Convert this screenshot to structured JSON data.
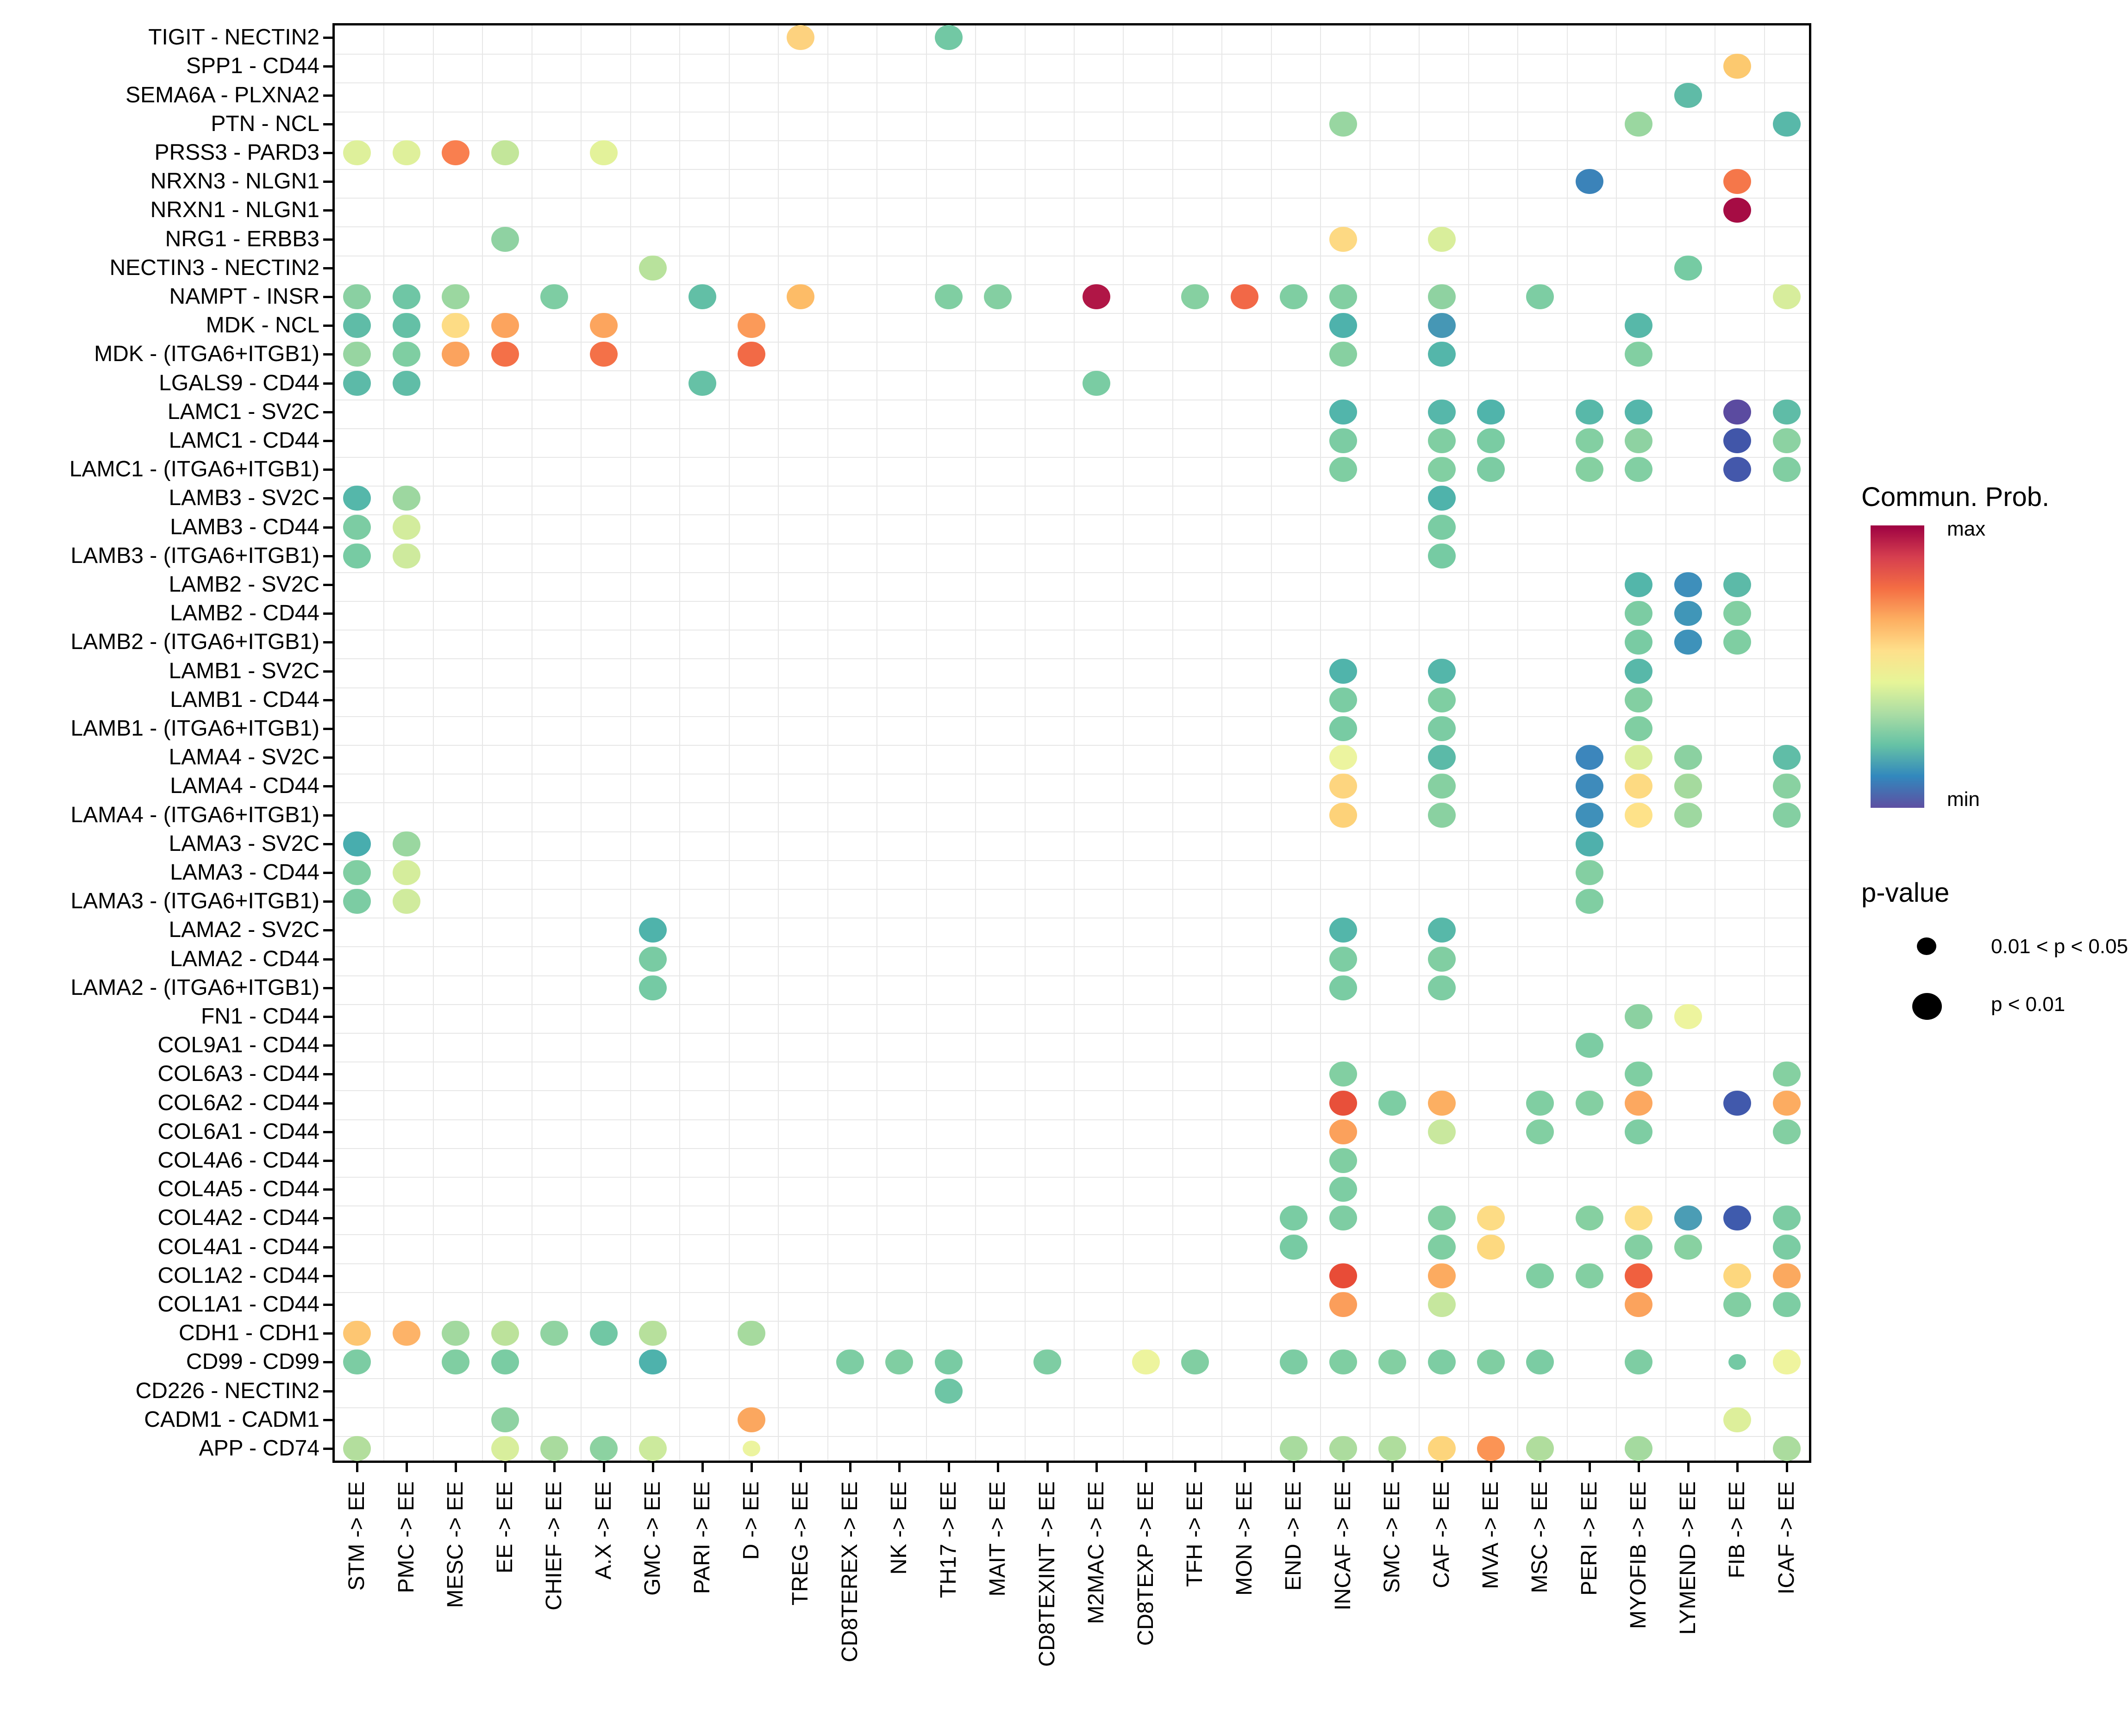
{
  "chart_data": {
    "type": "scatter",
    "subtype": "bubble-dotplot",
    "x_categories": [
      "STM -> EE",
      "PMC -> EE",
      "MESC -> EE",
      "EE -> EE",
      "CHIEF -> EE",
      "A.X -> EE",
      "GMC -> EE",
      "PARI -> EE",
      "D -> EE",
      "TREG -> EE",
      "CD8TEREX -> EE",
      "NK -> EE",
      "TH17 -> EE",
      "MAIT -> EE",
      "CD8TEXINT -> EE",
      "M2MAC -> EE",
      "CD8TEXP -> EE",
      "TFH -> EE",
      "MON -> EE",
      "END -> EE",
      "INCAF -> EE",
      "SMC -> EE",
      "CAF -> EE",
      "MVA -> EE",
      "MSC -> EE",
      "PERI -> EE",
      "MYOFIB -> EE",
      "LYMEND -> EE",
      "FIB -> EE",
      "ICAF -> EE"
    ],
    "y_categories": [
      "TIGIT - NECTIN2",
      "SPP1 - CD44",
      "SEMA6A - PLXNA2",
      "PTN - NCL",
      "PRSS3 - PARD3",
      "NRXN3 - NLGN1",
      "NRXN1 - NLGN1",
      "NRG1 - ERBB3",
      "NECTIN3 - NECTIN2",
      "NAMPT - INSR",
      "MDK - NCL",
      "MDK - (ITGA6+ITGB1)",
      "LGALS9 - CD44",
      "LAMC1 - SV2C",
      "LAMC1 - CD44",
      "LAMC1 - (ITGA6+ITGB1)",
      "LAMB3 - SV2C",
      "LAMB3 - CD44",
      "LAMB3 - (ITGA6+ITGB1)",
      "LAMB2 - SV2C",
      "LAMB2 - CD44",
      "LAMB2 - (ITGA6+ITGB1)",
      "LAMB1 - SV2C",
      "LAMB1 - CD44",
      "LAMB1 - (ITGA6+ITGB1)",
      "LAMA4 - SV2C",
      "LAMA4 - CD44",
      "LAMA4 - (ITGA6+ITGB1)",
      "LAMA3 - SV2C",
      "LAMA3 - CD44",
      "LAMA3 - (ITGA6+ITGB1)",
      "LAMA2 - SV2C",
      "LAMA2 - CD44",
      "LAMA2 - (ITGA6+ITGB1)",
      "FN1 - CD44",
      "COL9A1 - CD44",
      "COL6A3 - CD44",
      "COL6A2 - CD44",
      "COL6A1 - CD44",
      "COL4A6 - CD44",
      "COL4A5 - CD44",
      "COL4A2 - CD44",
      "COL4A1 - CD44",
      "COL1A2 - CD44",
      "COL1A1 - CD44",
      "CDH1 - CDH1",
      "CD99 - CD99",
      "CD226 - NECTIN2",
      "CADM1 - CADM1",
      "APP - CD74"
    ],
    "point_format": [
      "row_index",
      "col_index",
      "color",
      "size (lg = p<0.01, sm = 0.01<p<0.05)"
    ],
    "points": [
      [
        0,
        9,
        "#FDD27F",
        "lg"
      ],
      [
        0,
        12,
        "#72C8A4",
        "lg"
      ],
      [
        1,
        28,
        "#FCC96F",
        "lg"
      ],
      [
        2,
        27,
        "#5FBBA7",
        "lg"
      ],
      [
        3,
        20,
        "#98D6A1",
        "lg"
      ],
      [
        3,
        26,
        "#9AD7A0",
        "lg"
      ],
      [
        3,
        29,
        "#58B8A9",
        "lg"
      ],
      [
        4,
        0,
        "#DEF09B",
        "lg"
      ],
      [
        4,
        1,
        "#DFF09B",
        "lg"
      ],
      [
        4,
        2,
        "#F97F4F",
        "lg"
      ],
      [
        4,
        3,
        "#C3E69A",
        "lg"
      ],
      [
        4,
        5,
        "#E3F29A",
        "lg"
      ],
      [
        5,
        25,
        "#3B83B9",
        "lg"
      ],
      [
        5,
        28,
        "#F5774A",
        "lg"
      ],
      [
        6,
        28,
        "#A60C44",
        "lg"
      ],
      [
        7,
        3,
        "#8FD2A2",
        "lg"
      ],
      [
        7,
        20,
        "#FDD983",
        "lg"
      ],
      [
        7,
        22,
        "#D9EE9B",
        "lg"
      ],
      [
        8,
        6,
        "#B8E29C",
        "lg"
      ],
      [
        8,
        27,
        "#76CBA3",
        "lg"
      ],
      [
        9,
        0,
        "#8AD0A2",
        "lg"
      ],
      [
        9,
        1,
        "#6FC6A5",
        "lg"
      ],
      [
        9,
        2,
        "#9BD7A0",
        "lg"
      ],
      [
        9,
        4,
        "#7ECDA3",
        "lg"
      ],
      [
        9,
        7,
        "#62BFA6",
        "lg"
      ],
      [
        9,
        9,
        "#FDBC67",
        "lg"
      ],
      [
        9,
        12,
        "#80CEA2",
        "lg"
      ],
      [
        9,
        13,
        "#84CFA2",
        "lg"
      ],
      [
        9,
        15,
        "#B01646",
        "lg"
      ],
      [
        9,
        17,
        "#86D0A1",
        "lg"
      ],
      [
        9,
        18,
        "#F26847",
        "lg"
      ],
      [
        9,
        19,
        "#7FCEA2",
        "lg"
      ],
      [
        9,
        20,
        "#82CFA2",
        "lg"
      ],
      [
        9,
        22,
        "#8FD2A1",
        "lg"
      ],
      [
        9,
        24,
        "#7DCDA3",
        "lg"
      ],
      [
        9,
        29,
        "#D7ED9C",
        "lg"
      ],
      [
        10,
        0,
        "#5FBCA7",
        "lg"
      ],
      [
        10,
        1,
        "#64C0A6",
        "lg"
      ],
      [
        10,
        2,
        "#FDDC85",
        "lg"
      ],
      [
        10,
        3,
        "#FCA45E",
        "lg"
      ],
      [
        10,
        5,
        "#FCA55E",
        "lg"
      ],
      [
        10,
        8,
        "#FB9A59",
        "lg"
      ],
      [
        10,
        20,
        "#4EB2AC",
        "lg"
      ],
      [
        10,
        22,
        "#4697B5",
        "lg"
      ],
      [
        10,
        26,
        "#57B8A9",
        "lg"
      ],
      [
        11,
        0,
        "#97D5A1",
        "lg"
      ],
      [
        11,
        1,
        "#7FCEA2",
        "lg"
      ],
      [
        11,
        2,
        "#FBA35E",
        "lg"
      ],
      [
        11,
        3,
        "#F47048",
        "lg"
      ],
      [
        11,
        5,
        "#F47148",
        "lg"
      ],
      [
        11,
        8,
        "#F26A46",
        "lg"
      ],
      [
        11,
        20,
        "#87D0A1",
        "lg"
      ],
      [
        11,
        22,
        "#54B6AA",
        "lg"
      ],
      [
        11,
        26,
        "#82CFA2",
        "lg"
      ],
      [
        12,
        0,
        "#5CBAA8",
        "lg"
      ],
      [
        12,
        1,
        "#60BDA7",
        "lg"
      ],
      [
        12,
        7,
        "#66C1A6",
        "lg"
      ],
      [
        12,
        15,
        "#7ACCA3",
        "lg"
      ],
      [
        13,
        20,
        "#52B5AB",
        "lg"
      ],
      [
        13,
        22,
        "#56B7AA",
        "lg"
      ],
      [
        13,
        23,
        "#50B4AB",
        "lg"
      ],
      [
        13,
        25,
        "#58B8A9",
        "lg"
      ],
      [
        13,
        26,
        "#55B6AB",
        "lg"
      ],
      [
        13,
        28,
        "#5B4BA0",
        "lg"
      ],
      [
        13,
        29,
        "#5FBCA7",
        "lg"
      ],
      [
        14,
        20,
        "#7CCCA3",
        "lg"
      ],
      [
        14,
        22,
        "#80CEA2",
        "lg"
      ],
      [
        14,
        23,
        "#7ACCA3",
        "lg"
      ],
      [
        14,
        25,
        "#83CFA2",
        "lg"
      ],
      [
        14,
        26,
        "#8ED2A2",
        "lg"
      ],
      [
        14,
        28,
        "#4156A9",
        "lg"
      ],
      [
        14,
        29,
        "#8CD2A2",
        "lg"
      ],
      [
        15,
        20,
        "#7FCEA2",
        "lg"
      ],
      [
        15,
        22,
        "#82CFA2",
        "lg"
      ],
      [
        15,
        23,
        "#7CCCA3",
        "lg"
      ],
      [
        15,
        25,
        "#85D0A1",
        "lg"
      ],
      [
        15,
        26,
        "#82CFA3",
        "lg"
      ],
      [
        15,
        28,
        "#4458AB",
        "lg"
      ],
      [
        15,
        29,
        "#81CEA2",
        "lg"
      ],
      [
        16,
        0,
        "#55B7AA",
        "lg"
      ],
      [
        16,
        1,
        "#9DD7A0",
        "lg"
      ],
      [
        16,
        22,
        "#4FB3AB",
        "lg"
      ],
      [
        17,
        0,
        "#7CCCA3",
        "lg"
      ],
      [
        17,
        1,
        "#D3EC9D",
        "lg"
      ],
      [
        17,
        22,
        "#7ACCA3",
        "lg"
      ],
      [
        18,
        0,
        "#77CBA3",
        "lg"
      ],
      [
        18,
        1,
        "#CEEA9D",
        "lg"
      ],
      [
        18,
        22,
        "#76CBA3",
        "lg"
      ],
      [
        19,
        26,
        "#53B6AA",
        "lg"
      ],
      [
        19,
        27,
        "#3E8FBB",
        "lg"
      ],
      [
        19,
        28,
        "#5CBAA8",
        "lg"
      ],
      [
        20,
        26,
        "#7CCCA3",
        "lg"
      ],
      [
        20,
        27,
        "#4096B8",
        "lg"
      ],
      [
        20,
        28,
        "#82CFA2",
        "lg"
      ],
      [
        21,
        26,
        "#79CBA3",
        "lg"
      ],
      [
        21,
        27,
        "#3E92BA",
        "lg"
      ],
      [
        21,
        28,
        "#7FCEA2",
        "lg"
      ],
      [
        22,
        20,
        "#50B4AB",
        "lg"
      ],
      [
        22,
        22,
        "#54B6AA",
        "lg"
      ],
      [
        22,
        26,
        "#58B8A9",
        "lg"
      ],
      [
        23,
        20,
        "#7BCCA3",
        "lg"
      ],
      [
        23,
        22,
        "#7FCEA2",
        "lg"
      ],
      [
        23,
        26,
        "#83CFA2",
        "lg"
      ],
      [
        24,
        20,
        "#78CBA3",
        "lg"
      ],
      [
        24,
        22,
        "#7CCCA3",
        "lg"
      ],
      [
        24,
        26,
        "#80CEA2",
        "lg"
      ],
      [
        25,
        20,
        "#ECF49F",
        "lg"
      ],
      [
        25,
        22,
        "#5BBAA8",
        "lg"
      ],
      [
        25,
        25,
        "#3C86BC",
        "lg"
      ],
      [
        25,
        26,
        "#D9EE9B",
        "lg"
      ],
      [
        25,
        27,
        "#8BD1A1",
        "lg"
      ],
      [
        25,
        29,
        "#60BDA7",
        "lg"
      ],
      [
        26,
        20,
        "#FDD57F",
        "lg"
      ],
      [
        26,
        22,
        "#86D0A1",
        "lg"
      ],
      [
        26,
        25,
        "#3E8BBB",
        "lg"
      ],
      [
        26,
        26,
        "#FDDA82",
        "lg"
      ],
      [
        26,
        27,
        "#A5DA9E",
        "lg"
      ],
      [
        26,
        29,
        "#89D1A1",
        "lg"
      ],
      [
        27,
        20,
        "#FDD279",
        "lg"
      ],
      [
        27,
        22,
        "#8AD1A1",
        "lg"
      ],
      [
        27,
        25,
        "#3F90BA",
        "lg"
      ],
      [
        27,
        26,
        "#FEE289",
        "lg"
      ],
      [
        27,
        27,
        "#9ED8A0",
        "lg"
      ],
      [
        27,
        29,
        "#84CFA2",
        "lg"
      ],
      [
        28,
        0,
        "#48ADAE",
        "lg"
      ],
      [
        28,
        1,
        "#9AD7A0",
        "lg"
      ],
      [
        28,
        25,
        "#4FB0AC",
        "lg"
      ],
      [
        29,
        0,
        "#80CEA2",
        "lg"
      ],
      [
        29,
        1,
        "#D5ED9C",
        "lg"
      ],
      [
        29,
        25,
        "#84CFA2",
        "lg"
      ],
      [
        30,
        0,
        "#7CCCA3",
        "lg"
      ],
      [
        30,
        1,
        "#D0EB9D",
        "lg"
      ],
      [
        30,
        25,
        "#80CEA2",
        "lg"
      ],
      [
        31,
        6,
        "#4FB3AB",
        "lg"
      ],
      [
        31,
        20,
        "#53B6AA",
        "lg"
      ],
      [
        31,
        22,
        "#57B8A9",
        "lg"
      ],
      [
        32,
        6,
        "#79CBA3",
        "lg"
      ],
      [
        32,
        20,
        "#7DCDA3",
        "lg"
      ],
      [
        32,
        22,
        "#81CEA2",
        "lg"
      ],
      [
        33,
        6,
        "#75CAA4",
        "lg"
      ],
      [
        33,
        20,
        "#7ACCA3",
        "lg"
      ],
      [
        33,
        22,
        "#7ECDA3",
        "lg"
      ],
      [
        34,
        26,
        "#8BD1A1",
        "lg"
      ],
      [
        34,
        27,
        "#EDF49E",
        "lg"
      ],
      [
        35,
        25,
        "#7CCCA3",
        "lg"
      ],
      [
        36,
        20,
        "#82CFA2",
        "lg"
      ],
      [
        36,
        26,
        "#7FCEA2",
        "lg"
      ],
      [
        36,
        29,
        "#85D0A1",
        "lg"
      ],
      [
        37,
        20,
        "#E8503A",
        "lg"
      ],
      [
        37,
        21,
        "#7DCDA3",
        "lg"
      ],
      [
        37,
        22,
        "#FCAF62",
        "lg"
      ],
      [
        37,
        24,
        "#80CEA2",
        "lg"
      ],
      [
        37,
        25,
        "#84CFA2",
        "lg"
      ],
      [
        37,
        26,
        "#FCA860",
        "lg"
      ],
      [
        37,
        28,
        "#4159AC",
        "lg"
      ],
      [
        37,
        29,
        "#FCAC61",
        "lg"
      ],
      [
        38,
        20,
        "#FBA15C",
        "lg"
      ],
      [
        38,
        22,
        "#C9E89E",
        "lg"
      ],
      [
        38,
        24,
        "#82CFA2",
        "lg"
      ],
      [
        38,
        26,
        "#7ECDA3",
        "lg"
      ],
      [
        38,
        29,
        "#83CFA2",
        "lg"
      ],
      [
        39,
        20,
        "#80CEA2",
        "lg"
      ],
      [
        40,
        20,
        "#7DCDA3",
        "lg"
      ],
      [
        41,
        19,
        "#7ACCA3",
        "lg"
      ],
      [
        41,
        20,
        "#7ECDA3",
        "lg"
      ],
      [
        41,
        22,
        "#82CFA2",
        "lg"
      ],
      [
        41,
        23,
        "#FDDC85",
        "lg"
      ],
      [
        41,
        25,
        "#86D0A1",
        "lg"
      ],
      [
        41,
        26,
        "#FDDE87",
        "lg"
      ],
      [
        41,
        27,
        "#4B9DB5",
        "lg"
      ],
      [
        41,
        28,
        "#3F5BAD",
        "lg"
      ],
      [
        41,
        29,
        "#7CCCA3",
        "lg"
      ],
      [
        42,
        19,
        "#77CBA3",
        "lg"
      ],
      [
        42,
        22,
        "#7FCEA2",
        "lg"
      ],
      [
        42,
        23,
        "#FDD980",
        "lg"
      ],
      [
        42,
        26,
        "#83CFA2",
        "lg"
      ],
      [
        42,
        27,
        "#88D1A1",
        "lg"
      ],
      [
        42,
        29,
        "#7BCCA3",
        "lg"
      ],
      [
        43,
        20,
        "#E84C37",
        "lg"
      ],
      [
        43,
        22,
        "#FCAB60",
        "lg"
      ],
      [
        43,
        24,
        "#7FCEA2",
        "lg"
      ],
      [
        43,
        25,
        "#83CFA2",
        "lg"
      ],
      [
        43,
        26,
        "#F0603F",
        "lg"
      ],
      [
        43,
        28,
        "#FDD77E",
        "lg"
      ],
      [
        43,
        29,
        "#FBA95F",
        "lg"
      ],
      [
        44,
        20,
        "#FB9E5B",
        "lg"
      ],
      [
        44,
        22,
        "#C6E79E",
        "lg"
      ],
      [
        44,
        26,
        "#FBA35D",
        "lg"
      ],
      [
        44,
        28,
        "#81CEA2",
        "lg"
      ],
      [
        44,
        29,
        "#7DCDA3",
        "lg"
      ],
      [
        45,
        0,
        "#FDC672",
        "lg"
      ],
      [
        45,
        1,
        "#FDB368",
        "lg"
      ],
      [
        45,
        2,
        "#A2D99F",
        "lg"
      ],
      [
        45,
        3,
        "#BCE29B",
        "lg"
      ],
      [
        45,
        4,
        "#90D3A1",
        "lg"
      ],
      [
        45,
        5,
        "#71C7A4",
        "lg"
      ],
      [
        45,
        6,
        "#B7E09C",
        "lg"
      ],
      [
        45,
        8,
        "#A6DA9E",
        "lg"
      ],
      [
        46,
        0,
        "#7CCCA3",
        "lg"
      ],
      [
        46,
        2,
        "#80CEA2",
        "lg"
      ],
      [
        46,
        3,
        "#7ACCA3",
        "lg"
      ],
      [
        46,
        6,
        "#4EB2AC",
        "lg"
      ],
      [
        46,
        10,
        "#7DCDA3",
        "lg"
      ],
      [
        46,
        11,
        "#80CEA2",
        "lg"
      ],
      [
        46,
        12,
        "#79CBA3",
        "lg"
      ],
      [
        46,
        14,
        "#7ECDA3",
        "lg"
      ],
      [
        46,
        16,
        "#EDF49E",
        "lg"
      ],
      [
        46,
        17,
        "#81CEA2",
        "lg"
      ],
      [
        46,
        19,
        "#7CCCA3",
        "lg"
      ],
      [
        46,
        20,
        "#7FCEA2",
        "lg"
      ],
      [
        46,
        21,
        "#83CFA2",
        "lg"
      ],
      [
        46,
        22,
        "#7DCDA3",
        "lg"
      ],
      [
        46,
        23,
        "#80CEA2",
        "lg"
      ],
      [
        46,
        24,
        "#7BCCA3",
        "lg"
      ],
      [
        46,
        26,
        "#7ECDA3",
        "lg"
      ],
      [
        46,
        28,
        "#74C9A4",
        "sm"
      ],
      [
        46,
        29,
        "#EFF49E",
        "lg"
      ],
      [
        47,
        12,
        "#6EC5A5",
        "lg"
      ],
      [
        48,
        3,
        "#8ED2A2",
        "lg"
      ],
      [
        48,
        8,
        "#FBA75F",
        "lg"
      ],
      [
        48,
        28,
        "#DDEF9B",
        "lg"
      ],
      [
        49,
        0,
        "#B3DE9D",
        "lg"
      ],
      [
        49,
        3,
        "#D8EE9C",
        "lg"
      ],
      [
        49,
        4,
        "#A9DB9E",
        "lg"
      ],
      [
        49,
        5,
        "#8CD2A1",
        "lg"
      ],
      [
        49,
        6,
        "#CCEA9D",
        "lg"
      ],
      [
        49,
        8,
        "#ECF49F",
        "sm"
      ],
      [
        49,
        19,
        "#A8DB9E",
        "lg"
      ],
      [
        49,
        20,
        "#ACDC9E",
        "lg"
      ],
      [
        49,
        21,
        "#AFDD9D",
        "lg"
      ],
      [
        49,
        22,
        "#FDD57C",
        "lg"
      ],
      [
        49,
        23,
        "#FB9455",
        "lg"
      ],
      [
        49,
        24,
        "#B0DD9D",
        "lg"
      ],
      [
        49,
        26,
        "#A4DA9F",
        "lg"
      ],
      [
        49,
        29,
        "#ABDC9E",
        "lg"
      ]
    ],
    "grid": "on",
    "legend_position": "right"
  },
  "legend": {
    "colorbar_title": "Commun. Prob.",
    "max_label": "max",
    "min_label": "min",
    "gradient_stops": [
      "#9E0142",
      "#D53E4F",
      "#F46D43",
      "#FDAE61",
      "#FEE08B",
      "#E6F598",
      "#ABDDA4",
      "#66C2A5",
      "#3288BD",
      "#5E4FA2"
    ],
    "pvalue_title": "p-value",
    "size_items": [
      {
        "label": "0.01 < p < 0.05",
        "size": "sm"
      },
      {
        "label": "p < 0.01",
        "size": "lg"
      }
    ]
  }
}
